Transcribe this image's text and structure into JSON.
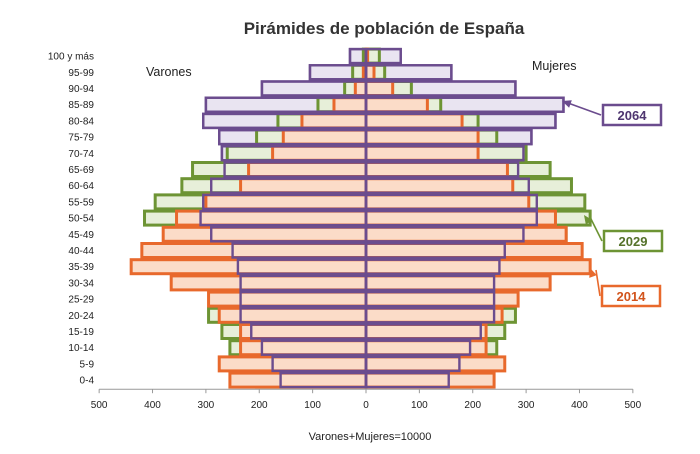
{
  "chart_data": {
    "type": "bar",
    "title": "Pirámides de población de España",
    "xlabel": "Varones+Mujeres=10000",
    "left_label": "Varones",
    "right_label": "Mujeres",
    "xlim": [
      -500,
      500
    ],
    "x_ticks": [
      -500,
      -400,
      -300,
      -200,
      -100,
      0,
      100,
      200,
      300,
      400,
      500
    ],
    "x_tick_labels": [
      "500",
      "400",
      "300",
      "200",
      "100",
      "0",
      "100",
      "200",
      "300",
      "400",
      "500"
    ],
    "categories": [
      "100 y más",
      "95-99",
      "90-94",
      "85-89",
      "80-84",
      "75-79",
      "70-74",
      "65-69",
      "60-64",
      "55-59",
      "50-54",
      "45-49",
      "40-44",
      "35-39",
      "30-34",
      "25-29",
      "20-24",
      "15-19",
      "10-14",
      "5-9",
      "0-4"
    ],
    "series": [
      {
        "name": "2014",
        "color": "#e8692c",
        "fill": "#fbdcc8",
        "varones": [
          0,
          5,
          20,
          60,
          120,
          155,
          175,
          220,
          235,
          300,
          355,
          380,
          420,
          440,
          365,
          295,
          275,
          235,
          235,
          275,
          255
        ],
        "mujeres": [
          3,
          15,
          50,
          115,
          180,
          210,
          210,
          265,
          275,
          305,
          355,
          375,
          405,
          420,
          345,
          285,
          255,
          225,
          225,
          260,
          240
        ]
      },
      {
        "name": "2029",
        "color": "#6d9434",
        "fill": "#e7efd9",
        "varones": [
          5,
          25,
          40,
          90,
          165,
          205,
          260,
          325,
          345,
          395,
          415,
          355,
          300,
          270,
          250,
          255,
          295,
          270,
          255,
          235,
          205
        ],
        "mujeres": [
          25,
          35,
          85,
          140,
          210,
          245,
          300,
          345,
          385,
          410,
          420,
          375,
          330,
          295,
          270,
          270,
          280,
          260,
          245,
          225,
          195
        ]
      },
      {
        "name": "2064",
        "color": "#6b4c8e",
        "fill": "#e9e4f1",
        "varones": [
          30,
          105,
          195,
          300,
          305,
          275,
          270,
          265,
          290,
          305,
          310,
          290,
          250,
          240,
          235,
          235,
          235,
          215,
          195,
          175,
          160
        ],
        "mujeres": [
          65,
          160,
          280,
          370,
          355,
          310,
          295,
          285,
          305,
          320,
          320,
          295,
          260,
          250,
          240,
          240,
          240,
          215,
          195,
          175,
          155
        ]
      }
    ],
    "draw_order": [
      "2064",
      "2029",
      "2014",
      "2064"
    ],
    "legend": "callout boxes on the right"
  }
}
